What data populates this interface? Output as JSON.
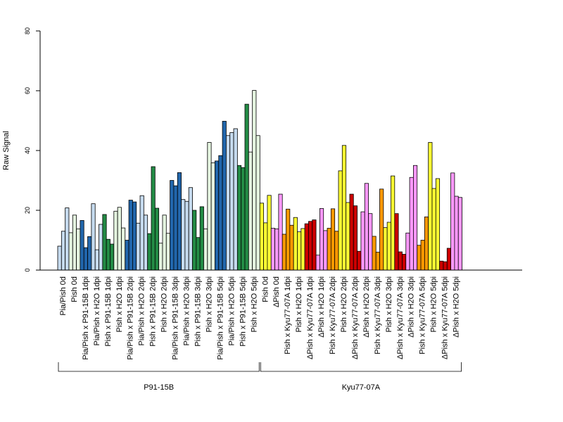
{
  "chart_data": {
    "type": "bar",
    "title": "",
    "ylabel": "Raw Signal",
    "ylim": [
      0,
      80
    ],
    "yticks": [
      0,
      20,
      40,
      60,
      80
    ],
    "bars_per_category": 3,
    "categories": [
      {
        "label": "Pia/Pish 0d",
        "color": "#c6dbef",
        "values": [
          8,
          13,
          20.8
        ]
      },
      {
        "label": "Pish 0d",
        "color": "#e5f5e0",
        "values": [
          12.5,
          18.4,
          13.8
        ]
      },
      {
        "label": "Pia/Pish x P91-15B 1dpi",
        "color": "#2166ac",
        "values": [
          16.6,
          7.5,
          11.2
        ]
      },
      {
        "label": "Pia/Pish x H2O 1dpi",
        "color": "#c6dbef",
        "values": [
          22.2,
          6.8,
          15.3
        ]
      },
      {
        "label": "Pish x P91-15B 1dpi",
        "color": "#238b45",
        "values": [
          18.6,
          10.3,
          8.7
        ]
      },
      {
        "label": "Pish x H2O 1dpi",
        "color": "#e5f5e0",
        "values": [
          19.7,
          21.0,
          14.1
        ]
      },
      {
        "label": "Pia/Pish x P91-15B 2dpi",
        "color": "#2166ac",
        "values": [
          10.0,
          23.4,
          22.8
        ]
      },
      {
        "label": "Pia/Pish x H2O 2dpi",
        "color": "#c6dbef",
        "values": [
          15.7,
          24.9,
          18.4
        ]
      },
      {
        "label": "Pish x P91-15B 2dpi",
        "color": "#238b45",
        "values": [
          12.2,
          34.6,
          20.7
        ]
      },
      {
        "label": "Pish x H2O 2dpi",
        "color": "#e5f5e0",
        "values": [
          9.0,
          18.4,
          12.3
        ]
      },
      {
        "label": "Pia/Pish x P91-15B 3dpi",
        "color": "#2166ac",
        "values": [
          30.0,
          28.2,
          32.6
        ]
      },
      {
        "label": "Pia/Pish x H2O 3dpi",
        "color": "#c6dbef",
        "values": [
          23.6,
          23.0,
          27.6
        ]
      },
      {
        "label": "Pish x P91-15B 3dpi",
        "color": "#238b45",
        "values": [
          20.0,
          10.9,
          21.2
        ]
      },
      {
        "label": "Pish x H2O 3dpi",
        "color": "#e5f5e0",
        "values": [
          13.8,
          42.7,
          35.9
        ]
      },
      {
        "label": "Pia/Pish x P91-15B 5dpi",
        "color": "#2166ac",
        "values": [
          36.5,
          38.3,
          49.8
        ]
      },
      {
        "label": "Pia/Pish x H2O 5dpi",
        "color": "#c6dbef",
        "values": [
          45.0,
          46.0,
          47.3
        ]
      },
      {
        "label": "Pish x P91-15B 5dpi",
        "color": "#238b45",
        "values": [
          35.0,
          34.3,
          55.5
        ]
      },
      {
        "label": "Pish x H2O 5dpi",
        "color": "#e5f5e0",
        "values": [
          39.5,
          60.1,
          45.0
        ]
      },
      {
        "label": "Pish 0d",
        "color": "#ffff33",
        "values": [
          22.4,
          15.8,
          25.0
        ]
      },
      {
        "label": "ΔPish 0d",
        "color": "#ff99ff",
        "values": [
          14.0,
          13.8,
          25.4
        ]
      },
      {
        "label": "Pish x Kyu77-07A 1dpi",
        "color": "#ff9900",
        "values": [
          12.0,
          20.4,
          15.0
        ]
      },
      {
        "label": "Pish x H2O 1dpi",
        "color": "#ffff33",
        "values": [
          17.6,
          12.8,
          13.9
        ]
      },
      {
        "label": "ΔPish x Kyu77-07A 1dpi",
        "color": "#cc0000",
        "values": [
          15.5,
          16.3,
          16.8
        ]
      },
      {
        "label": "ΔPish x H2O 1dpi",
        "color": "#ff99ff",
        "values": [
          5.0,
          20.6,
          13.2
        ]
      },
      {
        "label": "Pish x Kyu77-07A 2dpi",
        "color": "#ff9900",
        "values": [
          14.0,
          20.5,
          13.0
        ]
      },
      {
        "label": "Pish x H2O 2dpi",
        "color": "#ffff33",
        "values": [
          33.2,
          41.7,
          22.6
        ]
      },
      {
        "label": "ΔPish x Kyu77-07A 2dpi",
        "color": "#cc0000",
        "values": [
          25.4,
          21.5,
          6.3
        ]
      },
      {
        "label": "ΔPish x H2O 2dpi",
        "color": "#ff99ff",
        "values": [
          19.5,
          29.0,
          18.9
        ]
      },
      {
        "label": "Pish x Kyu77-07A 3dpi",
        "color": "#ff9900",
        "values": [
          11.3,
          6.0,
          27.1
        ]
      },
      {
        "label": "Pish x H2O 3dpi",
        "color": "#ffff33",
        "values": [
          14.2,
          16.0,
          31.5
        ]
      },
      {
        "label": "ΔPish x Kyu77-07A 3dpi",
        "color": "#cc0000",
        "values": [
          18.9,
          6.1,
          5.3
        ]
      },
      {
        "label": "ΔPish x H2O 3dpi",
        "color": "#ff99ff",
        "values": [
          12.4,
          31.0,
          35.0
        ]
      },
      {
        "label": "Pish x Kyu77-07A 5dpi",
        "color": "#ff9900",
        "values": [
          8.3,
          10.0,
          17.8
        ]
      },
      {
        "label": "Pish x H2O 5dpi",
        "color": "#ffff33",
        "values": [
          42.7,
          27.3,
          30.6
        ]
      },
      {
        "label": "ΔPish x Kyu77-07A 5dpi",
        "color": "#cc0000",
        "values": [
          3.0,
          2.8,
          7.3
        ]
      },
      {
        "label": "ΔPish x H2O 5dpi",
        "color": "#ff99ff",
        "values": [
          32.5,
          24.7,
          24.3
        ]
      }
    ],
    "groups": [
      {
        "label": "P91-15B",
        "first_category": 0,
        "last_category": 17
      },
      {
        "label": "Kyu77-07A",
        "first_category": 18,
        "last_category": 35
      }
    ],
    "grid": false,
    "legend": "none"
  }
}
